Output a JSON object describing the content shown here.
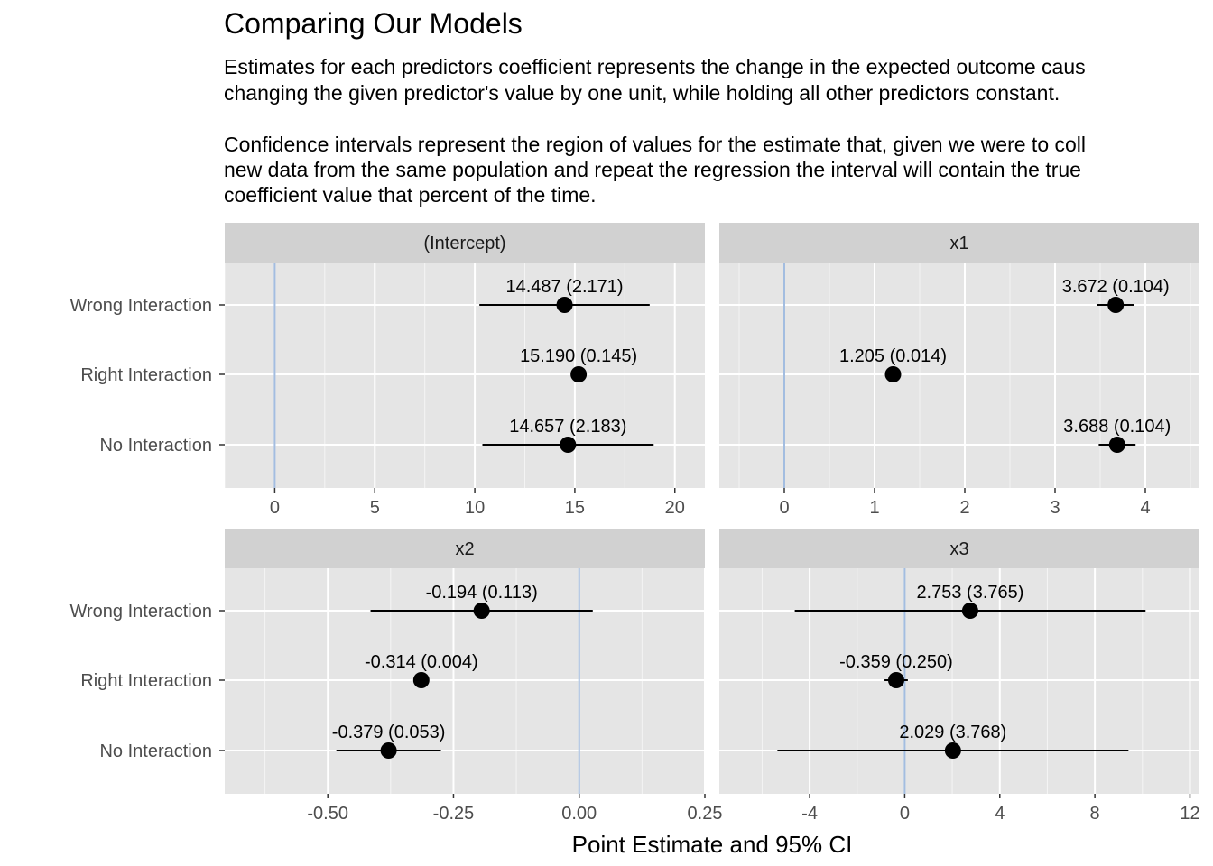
{
  "title": "Comparing Our Models",
  "subtitle_lines": [
    "Estimates for each predictors coefficient represents the change in the expected outcome caus",
    "changing the given predictor's value by one unit, while holding all other predictors constant.",
    "",
    "Confidence intervals represent the region of values for the estimate that, given we were to coll",
    "new data from the same population and repeat the regression the interval will contain the true",
    "coefficient value that percent of the time."
  ],
  "colors": {
    "panel_bg": "#e5e5e5",
    "strip_bg": "#d1d1d1",
    "gridline": "#ffffff",
    "zero_line": "#a3bde0",
    "point": "#000000"
  },
  "chart_data": {
    "type": "scatter",
    "xlabel": "Point Estimate and 95% CI",
    "ylabel": "",
    "categories": [
      "Wrong Interaction",
      "Right Interaction",
      "No Interaction"
    ],
    "panels": [
      {
        "name": "(Intercept)",
        "xlim": [
          -2.5,
          21.5
        ],
        "xticks": [
          0,
          5,
          10,
          15,
          20
        ],
        "xtick_labels": [
          "0",
          "5",
          "10",
          "15",
          "20"
        ],
        "points": [
          {
            "model": "Wrong Interaction",
            "estimate": 14.487,
            "lower": 10.23,
            "upper": 18.74,
            "label": "14.487 (2.171)"
          },
          {
            "model": "Right Interaction",
            "estimate": 15.19,
            "lower": 14.91,
            "upper": 15.47,
            "label": "15.190 (0.145)"
          },
          {
            "model": "No Interaction",
            "estimate": 14.657,
            "lower": 10.38,
            "upper": 18.94,
            "label": "14.657 (2.183)"
          }
        ]
      },
      {
        "name": "x1",
        "xlim": [
          -0.72,
          4.6
        ],
        "xticks": [
          0,
          1,
          2,
          3,
          4
        ],
        "xtick_labels": [
          "0",
          "1",
          "2",
          "3",
          "4"
        ],
        "points": [
          {
            "model": "Wrong Interaction",
            "estimate": 3.672,
            "lower": 3.468,
            "upper": 3.876,
            "label": "3.672 (0.104)"
          },
          {
            "model": "Right Interaction",
            "estimate": 1.205,
            "lower": 1.178,
            "upper": 1.232,
            "label": "1.205 (0.014)"
          },
          {
            "model": "No Interaction",
            "estimate": 3.688,
            "lower": 3.484,
            "upper": 3.892,
            "label": "3.688 (0.104)"
          }
        ]
      },
      {
        "name": "x2",
        "xlim": [
          -0.705,
          0.25
        ],
        "xticks": [
          -0.5,
          -0.25,
          0.0,
          0.25
        ],
        "xtick_labels": [
          "-0.50",
          "-0.25",
          "0.00",
          "0.25"
        ],
        "points": [
          {
            "model": "Wrong Interaction",
            "estimate": -0.194,
            "lower": -0.415,
            "upper": 0.027,
            "label": "-0.194 (0.113)"
          },
          {
            "model": "Right Interaction",
            "estimate": -0.314,
            "lower": -0.322,
            "upper": -0.306,
            "label": "-0.314 (0.004)"
          },
          {
            "model": "No Interaction",
            "estimate": -0.379,
            "lower": -0.483,
            "upper": -0.275,
            "label": "-0.379 (0.053)"
          }
        ]
      },
      {
        "name": "x3",
        "xlim": [
          -7.8,
          12.4
        ],
        "xticks": [
          -4,
          0,
          4,
          8,
          12
        ],
        "xtick_labels": [
          "-4",
          "0",
          "4",
          "8",
          "12"
        ],
        "points": [
          {
            "model": "Wrong Interaction",
            "estimate": 2.753,
            "lower": -4.626,
            "upper": 10.132,
            "label": "2.753 (3.765)"
          },
          {
            "model": "Right Interaction",
            "estimate": -0.359,
            "lower": -0.849,
            "upper": 0.131,
            "label": "-0.359 (0.250)"
          },
          {
            "model": "No Interaction",
            "estimate": 2.029,
            "lower": -5.356,
            "upper": 9.414,
            "label": "2.029 (3.768)"
          }
        ]
      }
    ],
    "grid": true,
    "reference_line_x": 0
  }
}
